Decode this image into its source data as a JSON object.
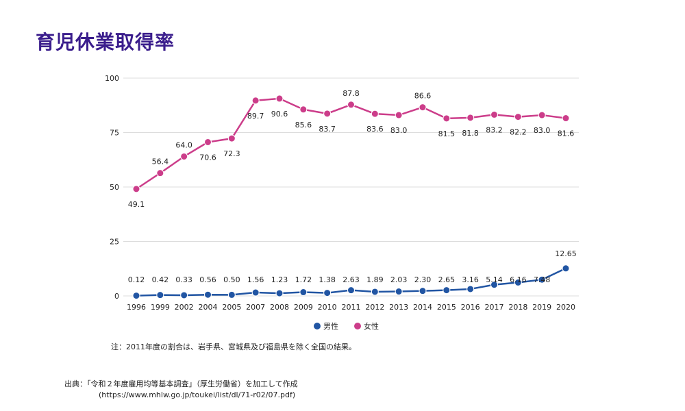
{
  "title": "育児休業取得率",
  "note": "注：2011年度の割合は、岩手県、宮城県及び福島県を除く全国の結果。",
  "source": {
    "label": "出典：「令和２年度雇用均等基本調査」（厚生労働省）を加工して作成",
    "url": "(https://www.mhlw.go.jp/toukei/list/dl/71-r02/07.pdf)"
  },
  "colors": {
    "male": "#2155a3",
    "female": "#cc3d8a",
    "grid": "#dddddd"
  },
  "chart_data": {
    "type": "line",
    "title": "育児休業取得率",
    "xlabel": "",
    "ylabel": "",
    "ylim": [
      0,
      100
    ],
    "yticks": [
      0,
      25,
      50,
      75,
      100
    ],
    "grid": true,
    "legend_position": "bottom",
    "categories": [
      "1996",
      "1999",
      "2002",
      "2004",
      "2005",
      "2007",
      "2008",
      "2009",
      "2010",
      "2011",
      "2012",
      "2013",
      "2014",
      "2015",
      "2016",
      "2017",
      "2018",
      "2019",
      "2020"
    ],
    "series": [
      {
        "name": "男性",
        "values": [
          0.12,
          0.42,
          0.33,
          0.56,
          0.5,
          1.56,
          1.23,
          1.72,
          1.38,
          2.63,
          1.89,
          2.03,
          2.3,
          2.65,
          3.16,
          5.14,
          6.16,
          7.48,
          12.65
        ],
        "labels": [
          "0.12",
          "0.42",
          "0.33",
          "0.56",
          "0.50",
          "1.56",
          "1.23",
          "1.72",
          "1.38",
          "2.63",
          "1.89",
          "2.03",
          "2.30",
          "2.65",
          "3.16",
          "5.14",
          "6.16",
          "7.48",
          "12.65"
        ]
      },
      {
        "name": "女性",
        "values": [
          49.1,
          56.4,
          64.0,
          70.6,
          72.3,
          89.7,
          90.6,
          85.6,
          83.7,
          87.8,
          83.6,
          83.0,
          86.6,
          81.5,
          81.8,
          83.2,
          82.2,
          83.0,
          81.6
        ],
        "labels": [
          "49.1",
          "56.4",
          "64.0",
          "70.6",
          "72.3",
          "89.7",
          "90.6",
          "85.6",
          "83.7",
          "87.8",
          "83.6",
          "83.0",
          "86.6",
          "81.5",
          "81.8",
          "83.2",
          "82.2",
          "83.0",
          "81.6"
        ]
      }
    ]
  }
}
